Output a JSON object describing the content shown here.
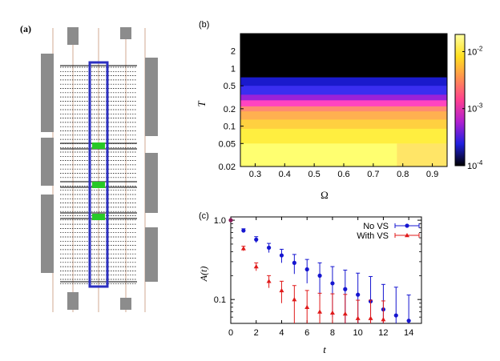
{
  "panels": {
    "a": {
      "label": "(a)"
    },
    "b": {
      "label": "(b)"
    },
    "c": {
      "label": "(c)"
    }
  },
  "colors": {
    "rail": "#d9b8a3",
    "gray_block": "#8c8c8c",
    "dotted_line": "#000000",
    "highlight_box": "#2b2fc0",
    "green_mark": "#27c927",
    "no_vs": "#1515d0",
    "with_vs": "#e01a1a"
  },
  "chart_data": [
    {
      "type": "heatmap",
      "panel": "b",
      "xlabel": "Ω",
      "ylabel": "T",
      "xlim": [
        0.25,
        0.95
      ],
      "ylim": [
        0.02,
        4
      ],
      "yscale": "log",
      "x_ticks": [
        "0.3",
        "0.4",
        "0.5",
        "0.6",
        "0.7",
        "0.8",
        "0.9"
      ],
      "y_ticks": [
        "0.02",
        "0.05",
        "0.1",
        "0.2",
        "0.5",
        "1",
        "2"
      ],
      "colorbar": {
        "scale": "log",
        "range": [
          0.0001,
          0.02
        ],
        "ticks": [
          "10^-2",
          "10^-3",
          "10^-4"
        ]
      },
      "colormap": [
        "#000000",
        "#2020e0",
        "#b020d0",
        "#ff4090",
        "#ff9050",
        "#ffe020",
        "#ffffa0"
      ],
      "rows": [
        {
          "T_min": 0.7,
          "T_max": 4.0,
          "color": "#000000"
        },
        {
          "T_min": 0.5,
          "T_max": 0.7,
          "color": "#1a1acc"
        },
        {
          "T_min": 0.35,
          "T_max": 0.5,
          "color": "#3a2ef0"
        },
        {
          "T_min": 0.28,
          "T_max": 0.35,
          "color": "#9a22d8"
        },
        {
          "T_min": 0.22,
          "T_max": 0.28,
          "color": "#ff44c0"
        },
        {
          "T_min": 0.18,
          "T_max": 0.22,
          "color": "#ff8c70"
        },
        {
          "T_min": 0.13,
          "T_max": 0.18,
          "color": "#ffb050"
        },
        {
          "T_min": 0.09,
          "T_max": 0.13,
          "color": "#ffd040"
        },
        {
          "T_min": 0.05,
          "T_max": 0.09,
          "color": "#ffee40"
        },
        {
          "T_min": 0.02,
          "T_max": 0.05,
          "color": "#ffff70"
        }
      ]
    },
    {
      "type": "scatter",
      "panel": "c",
      "xlabel": "t",
      "ylabel": "A(t)",
      "xlim": [
        0,
        15
      ],
      "ylim": [
        0.05,
        1.1
      ],
      "yscale": "log",
      "x_ticks": [
        "0",
        "2",
        "4",
        "6",
        "8",
        "10",
        "12",
        "14"
      ],
      "y_ticks": [
        "1.0",
        "0.1"
      ],
      "legend_position": "top-right",
      "series": [
        {
          "name": "No VS",
          "marker": "circle",
          "x": [
            0,
            1,
            2,
            3,
            4,
            5,
            6,
            7,
            8,
            9,
            10,
            11,
            12,
            13,
            14
          ],
          "y": [
            1.0,
            0.74,
            0.57,
            0.45,
            0.36,
            0.29,
            0.24,
            0.2,
            0.16,
            0.135,
            0.115,
            0.095,
            0.075,
            0.063,
            0.054
          ],
          "err": [
            0,
            0.04,
            0.05,
            0.06,
            0.07,
            0.08,
            0.08,
            0.09,
            0.1,
            0.1,
            0.1,
            0.1,
            0.08,
            0.08,
            0.06
          ]
        },
        {
          "name": "With VS",
          "marker": "triangle",
          "x": [
            0,
            1,
            2,
            3,
            4,
            5,
            6,
            7,
            8,
            9,
            10,
            11,
            12
          ],
          "y": [
            1.0,
            0.44,
            0.26,
            0.17,
            0.13,
            0.1,
            0.08,
            0.07,
            0.068,
            0.066,
            0.058,
            0.058,
            0.056
          ],
          "err": [
            0,
            0.03,
            0.03,
            0.03,
            0.04,
            0.05,
            0.05,
            0.05,
            0.05,
            0.05,
            0.04,
            0.04,
            0.04
          ]
        }
      ]
    }
  ]
}
